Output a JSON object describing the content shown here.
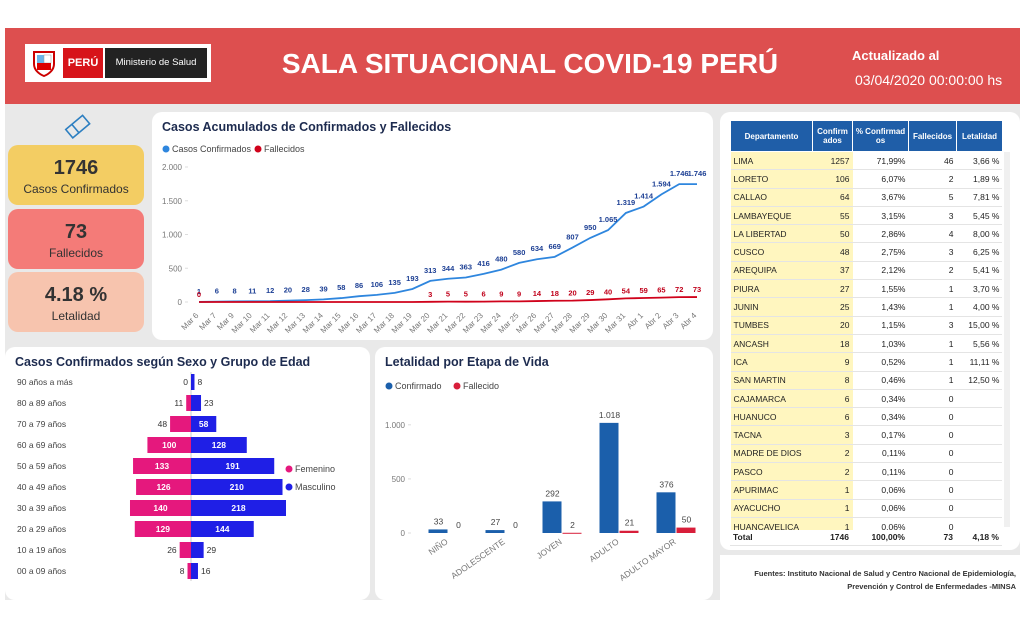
{
  "header": {
    "logo_country": "PERÚ",
    "logo_ministry": "Ministerio de Salud",
    "title": "SALA SITUACIONAL COVID-19 PERÚ",
    "updated_label": "Actualizado al",
    "updated_value": "03/04/2020 00:00:00 hs"
  },
  "kpis": [
    {
      "value": "1746",
      "label": "Casos Confirmados"
    },
    {
      "value": "73",
      "label": "Fallecidos"
    },
    {
      "value": "4.18 %",
      "label": "Letalidad"
    }
  ],
  "chart_data": [
    {
      "type": "line",
      "title": "Casos Acumulados de Confirmados y Fallecidos",
      "categories": [
        "Mar 6",
        "Mar 7",
        "Mar 9",
        "Mar 10",
        "Mar 11",
        "Mar 12",
        "Mar 13",
        "Mar 14",
        "Mar 15",
        "Mar 16",
        "Mar 17",
        "Mar 18",
        "Mar 19",
        "Mar 20",
        "Mar 21",
        "Mar 22",
        "Mar 23",
        "Mar 24",
        "Mar 25",
        "Mar 26",
        "Mar 27",
        "Mar 28",
        "Mar 29",
        "Mar 30",
        "Mar 31",
        "Abr 1",
        "Abr 2",
        "Abr 3",
        "Abr 4"
      ],
      "series": [
        {
          "name": "Casos Confirmados",
          "color": "#2e86de",
          "values": [
            1,
            6,
            8,
            11,
            12,
            20,
            28,
            39,
            58,
            86,
            106,
            135,
            193,
            313,
            344,
            363,
            416,
            480,
            580,
            634,
            669,
            807,
            950,
            1065,
            1319,
            1414,
            1594,
            1746,
            1746
          ],
          "value_labels": [
            "1",
            "6",
            "8",
            "11",
            "12",
            "20",
            "28",
            "39",
            "58",
            "86",
            "106",
            "135",
            "193",
            "313",
            "344",
            "363",
            "416",
            "480",
            "580",
            "634",
            "669",
            "807",
            "950",
            "1.065",
            "1.319",
            "1.414",
            "1.594",
            "1.746",
            "1.746"
          ]
        },
        {
          "name": "Fallecidos",
          "color": "#d0021b",
          "values": [
            0,
            0,
            0,
            0,
            0,
            0,
            0,
            0,
            0,
            0,
            0,
            0,
            0,
            3,
            5,
            5,
            6,
            9,
            9,
            14,
            18,
            20,
            29,
            40,
            54,
            59,
            65,
            72,
            73
          ],
          "value_labels": [
            "0",
            null,
            null,
            null,
            null,
            null,
            null,
            null,
            null,
            null,
            null,
            null,
            null,
            "3",
            "5",
            "5",
            "6",
            "9",
            "9",
            "14",
            "18",
            "20",
            "29",
            "40",
            "54",
            "59",
            "65",
            "72",
            "73"
          ]
        }
      ],
      "ylim": [
        0,
        2000
      ],
      "yticks": [
        0,
        500,
        {
          "value": 1000,
          "label": "1.000"
        },
        {
          "value": 1500,
          "label": "1.500"
        },
        {
          "value": 2000,
          "label": "2.000"
        }
      ],
      "grid": false
    },
    {
      "type": "pyramid",
      "title": "Casos Confirmados según Sexo y Grupo de Edad",
      "categories": [
        "90 años a más",
        "80 a 89 años",
        "70 a 79 años",
        "60 a 69 años",
        "50 a 59 años",
        "40 a 49 años",
        "30 a 39 años",
        "20 a 29 años",
        "10 a 19 años",
        "00 a 09 años"
      ],
      "series": [
        {
          "name": "Femenino",
          "color": "#e5187d",
          "values": [
            0,
            11,
            48,
            100,
            133,
            126,
            140,
            129,
            26,
            8
          ]
        },
        {
          "name": "Masculino",
          "color": "#1f1fe6",
          "values": [
            8,
            23,
            58,
            128,
            191,
            210,
            218,
            144,
            29,
            16
          ]
        }
      ],
      "legend": "right"
    },
    {
      "type": "bar",
      "title": "Letalidad por Etapa de Vida",
      "categories": [
        "NIÑO",
        "ADOLESCENTE",
        "JOVEN",
        "ADULTO",
        "ADULTO MAYOR"
      ],
      "series": [
        {
          "name": "Confirmado",
          "color": "#1b5fab",
          "values": [
            33,
            27,
            292,
            1018,
            376
          ],
          "value_labels": [
            "33",
            "27",
            "292",
            "1.018",
            "376"
          ]
        },
        {
          "name": "Fallecido",
          "color": "#d81e3a",
          "values": [
            0,
            0,
            2,
            21,
            50
          ],
          "value_labels": [
            "0",
            "0",
            "2",
            "21",
            "50"
          ]
        }
      ],
      "ylim": [
        0,
        1100
      ],
      "yticks": [
        0,
        500,
        {
          "value": 1000,
          "label": "1.000"
        }
      ],
      "grid": false
    }
  ],
  "table": {
    "columns": [
      "Departamento",
      "Confirmados",
      "% Confirmados",
      "Fallecidos",
      "Letalidad"
    ],
    "rows": [
      [
        "LIMA",
        "1257",
        "71,99%",
        "46",
        "3,66 %"
      ],
      [
        "LORETO",
        "106",
        "6,07%",
        "2",
        "1,89 %"
      ],
      [
        "CALLAO",
        "64",
        "3,67%",
        "5",
        "7,81 %"
      ],
      [
        "LAMBAYEQUE",
        "55",
        "3,15%",
        "3",
        "5,45 %"
      ],
      [
        "LA LIBERTAD",
        "50",
        "2,86%",
        "4",
        "8,00 %"
      ],
      [
        "CUSCO",
        "48",
        "2,75%",
        "3",
        "6,25 %"
      ],
      [
        "AREQUIPA",
        "37",
        "2,12%",
        "2",
        "5,41 %"
      ],
      [
        "PIURA",
        "27",
        "1,55%",
        "1",
        "3,70 %"
      ],
      [
        "JUNIN",
        "25",
        "1,43%",
        "1",
        "4,00 %"
      ],
      [
        "TUMBES",
        "20",
        "1,15%",
        "3",
        "15,00 %"
      ],
      [
        "ANCASH",
        "18",
        "1,03%",
        "1",
        "5,56 %"
      ],
      [
        "ICA",
        "9",
        "0,52%",
        "1",
        "11,11 %"
      ],
      [
        "SAN MARTIN",
        "8",
        "0,46%",
        "1",
        "12,50 %"
      ],
      [
        "CAJAMARCA",
        "6",
        "0,34%",
        "0",
        null
      ],
      [
        "HUANUCO",
        "6",
        "0,34%",
        "0",
        null
      ],
      [
        "TACNA",
        "3",
        "0,17%",
        "0",
        null
      ],
      [
        "MADRE DE DIOS",
        "2",
        "0,11%",
        "0",
        null
      ],
      [
        "PASCO",
        "2",
        "0,11%",
        "0",
        null
      ],
      [
        "APURIMAC",
        "1",
        "0,06%",
        "0",
        null
      ],
      [
        "AYACUCHO",
        "1",
        "0,06%",
        "0",
        null
      ],
      [
        "HUANCAVELICA",
        "1",
        "0,06%",
        "0",
        null
      ]
    ],
    "total": [
      "Total",
      "1746",
      "100,00%",
      "73",
      "4,18 %"
    ]
  },
  "footer": "Fuentes: Instituto Nacional de Salud y Centro Nacional de Epidemiología, Prevención y Control de Enfermedades -MINSA"
}
